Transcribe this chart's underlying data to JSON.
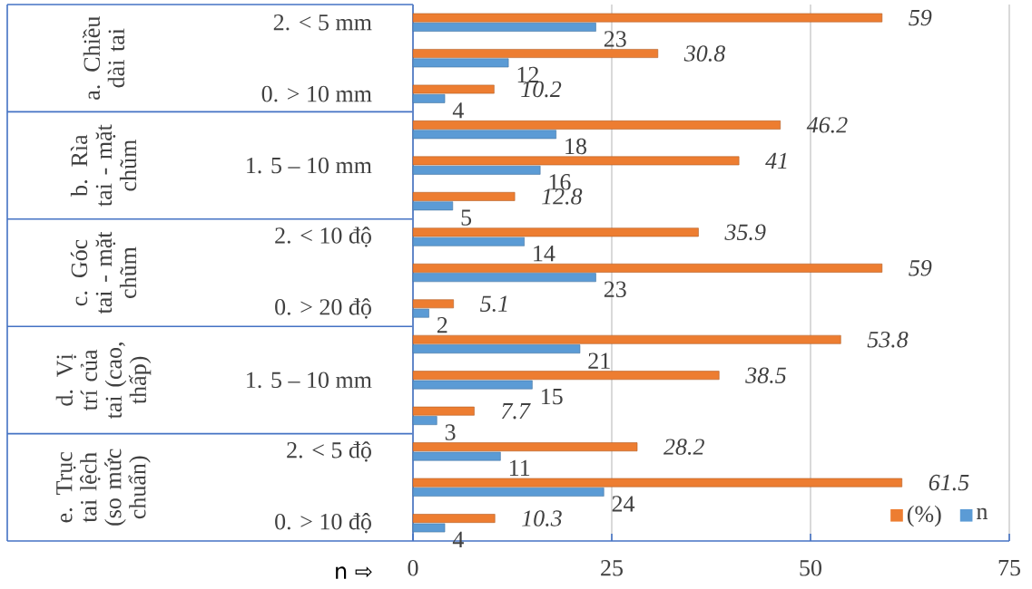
{
  "chart_data": {
    "type": "bar",
    "orientation": "horizontal",
    "categories": [
      "2. < 5 mm",
      null,
      "0. > 10 mm",
      null,
      "1. 5 – 10 mm",
      null,
      "2. < 10 độ",
      null,
      "0. > 20 độ",
      null,
      "1. 5 – 10 mm",
      null,
      "2. < 5 độ",
      null,
      "0. > 10 độ"
    ],
    "series": [
      {
        "name": "(%)",
        "color": "#ed7d31",
        "values": [
          59,
          30.8,
          10.2,
          46.2,
          41,
          12.8,
          35.9,
          59,
          5.1,
          53.8,
          38.5,
          7.7,
          28.2,
          61.5,
          10.3
        ]
      },
      {
        "name": "n",
        "color": "#5b9bd5",
        "values": [
          23,
          12,
          4,
          18,
          16,
          5,
          14,
          23,
          2,
          21,
          15,
          3,
          11,
          24,
          4
        ]
      }
    ],
    "xlim": [
      0,
      75
    ],
    "xticks": [
      0,
      25,
      50,
      75
    ],
    "xlabel": "n ⇨",
    "grid": "x",
    "legend": "bottom right",
    "data_labels": true,
    "annotations": [
      "a. Chiều dài tai",
      "b. Rìa tai - mặt chũm",
      "c. Góc tai - mặt chũm",
      "d. Vị trí của tai (cao, thấp)",
      "e. Trục tai lệch (so mức chuẩn)"
    ]
  }
}
